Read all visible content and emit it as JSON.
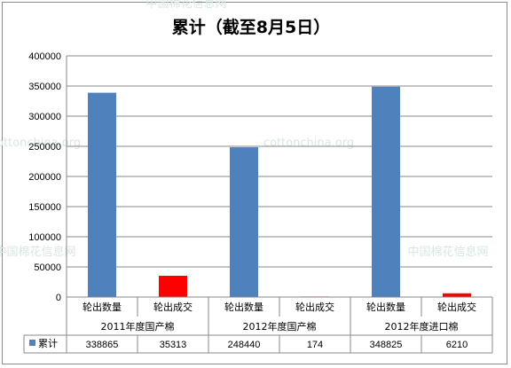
{
  "chart_data": {
    "type": "bar",
    "title": "累计（截至8月5日）",
    "categories": [
      "轮出数量",
      "轮出成交",
      "轮出数量",
      "轮出成交",
      "轮出数量",
      "轮出成交"
    ],
    "groups": [
      "2011年度国产棉",
      "2012年度国产棉",
      "2012年度进口棉"
    ],
    "series": [
      {
        "name": "累计",
        "values": [
          338865,
          35313,
          248440,
          174,
          348825,
          6210
        ]
      }
    ],
    "bar_colors": [
      "#4f81bd",
      "#ff0000",
      "#4f81bd",
      "#ff0000",
      "#4f81bd",
      "#ff0000"
    ],
    "value_labels": [
      "338865",
      "35313",
      "248440",
      "174",
      "348825",
      "6210"
    ],
    "yticks": [
      "0",
      "50000",
      "100000",
      "150000",
      "200000",
      "250000",
      "300000",
      "350000",
      "400000"
    ],
    "ylim": [
      0,
      400000
    ],
    "grid": true,
    "legend": "data-table-left",
    "legend_color": "#4f81bd"
  },
  "watermarks": [
    "中国棉花信息网",
    "cottonchina.org",
    "cottonchina.org",
    "中国棉花信息网",
    "中国棉花信息网"
  ]
}
